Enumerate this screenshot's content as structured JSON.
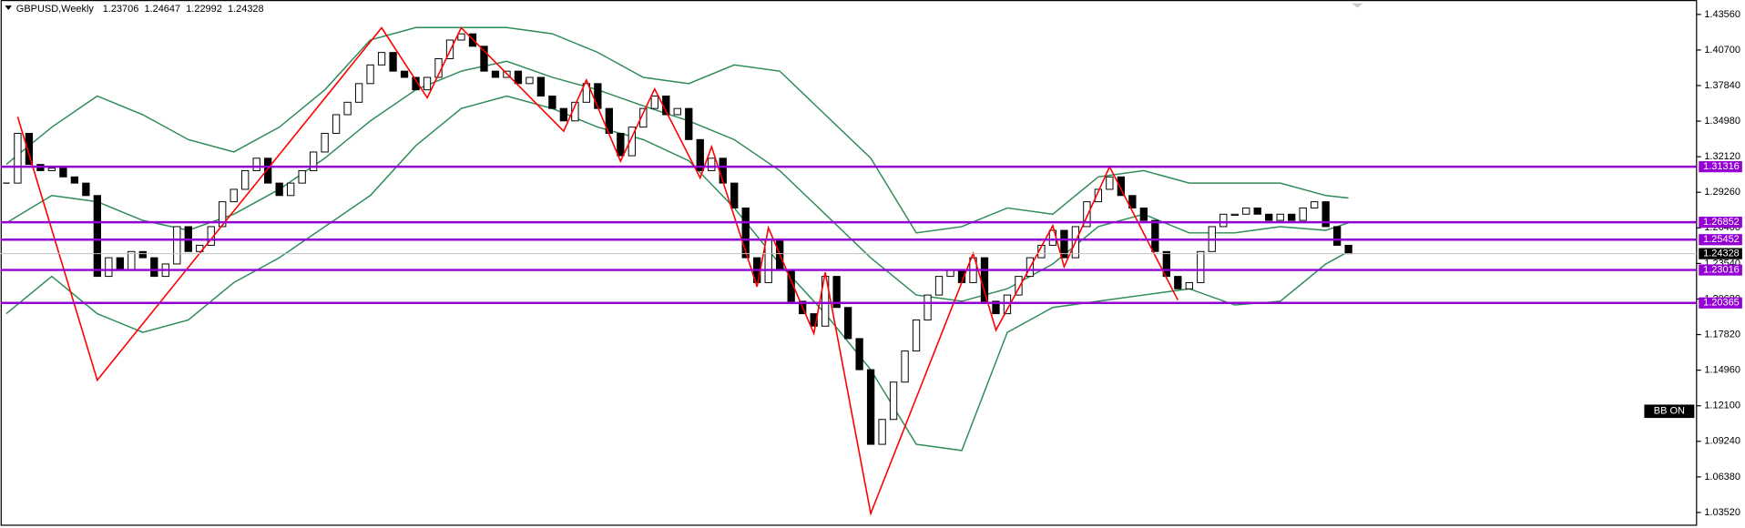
{
  "chart_data": {
    "type": "candlestick",
    "symbol": "GBPUSD,Weekly",
    "last_bar": [
      1.23706,
      1.24647,
      1.22992,
      1.24328
    ],
    "close": [
      1.3,
      1.34,
      1.315,
      1.31,
      1.312,
      1.305,
      1.3,
      1.29,
      1.225,
      1.24,
      1.23,
      1.245,
      1.24,
      1.225,
      1.235,
      1.265,
      1.245,
      1.25,
      1.265,
      1.285,
      1.295,
      1.31,
      1.32,
      1.3,
      1.29,
      1.3,
      1.31,
      1.325,
      1.34,
      1.355,
      1.365,
      1.38,
      1.395,
      1.405,
      1.39,
      1.385,
      1.375,
      1.385,
      1.4,
      1.415,
      1.42,
      1.41,
      1.39,
      1.385,
      1.39,
      1.38,
      1.385,
      1.37,
      1.36,
      1.35,
      1.365,
      1.38,
      1.36,
      1.34,
      1.322,
      1.345,
      1.36,
      1.37,
      1.355,
      1.36,
      1.335,
      1.31,
      1.32,
      1.3,
      1.28,
      1.24,
      1.22,
      1.255,
      1.23,
      1.205,
      1.195,
      1.185,
      1.225,
      1.2,
      1.175,
      1.15,
      1.09,
      1.11,
      1.14,
      1.165,
      1.19,
      1.21,
      1.225,
      1.23,
      1.22,
      1.24,
      1.205,
      1.195,
      1.21,
      1.225,
      1.24,
      1.25,
      1.262,
      1.24,
      1.265,
      1.285,
      1.295,
      1.305,
      1.29,
      1.28,
      1.27,
      1.245,
      1.225,
      1.215,
      1.22,
      1.245,
      1.265,
      1.275,
      1.275,
      1.28,
      1.275,
      1.27,
      1.275,
      1.27,
      1.28,
      1.285,
      1.265,
      1.25,
      1.24328
    ],
    "up_color": "#ffffff",
    "down_color": "#000000",
    "bands": {
      "x": [
        0,
        4,
        8,
        12,
        16,
        20,
        24,
        28,
        32,
        36,
        40,
        44,
        48,
        52,
        56,
        60,
        64,
        68,
        72,
        76,
        80,
        84,
        88,
        92,
        96,
        100,
        104,
        108,
        112,
        116,
        118
      ],
      "upper": [
        1.315,
        1.345,
        1.37,
        1.355,
        1.335,
        1.325,
        1.345,
        1.375,
        1.415,
        1.425,
        1.425,
        1.425,
        1.42,
        1.405,
        1.385,
        1.38,
        1.395,
        1.39,
        1.355,
        1.32,
        1.26,
        1.265,
        1.28,
        1.275,
        1.305,
        1.31,
        1.3,
        1.3,
        1.3,
        1.29,
        1.288
      ],
      "middle": [
        1.268,
        1.29,
        1.285,
        1.27,
        1.262,
        1.275,
        1.295,
        1.32,
        1.35,
        1.375,
        1.39,
        1.398,
        1.385,
        1.375,
        1.362,
        1.35,
        1.335,
        1.31,
        1.275,
        1.24,
        1.21,
        1.205,
        1.215,
        1.235,
        1.265,
        1.275,
        1.26,
        1.26,
        1.265,
        1.262,
        1.268
      ],
      "lower": [
        1.195,
        1.225,
        1.195,
        1.18,
        1.19,
        1.22,
        1.24,
        1.265,
        1.29,
        1.33,
        1.36,
        1.37,
        1.36,
        1.345,
        1.335,
        1.318,
        1.28,
        1.235,
        1.195,
        1.15,
        1.09,
        1.085,
        1.18,
        1.2,
        1.205,
        1.21,
        1.215,
        1.202,
        1.205,
        1.235,
        1.245
      ],
      "color": "#2e8b57"
    },
    "zigzag": {
      "x": [
        1,
        8,
        33,
        37,
        40,
        49,
        51,
        54,
        57,
        61,
        62,
        66,
        67,
        71,
        72,
        76,
        85,
        87,
        92,
        93,
        97,
        103
      ],
      "y": [
        1.35337,
        1.14156,
        1.42487,
        1.36857,
        1.42487,
        1.34176,
        1.38287,
        1.31762,
        1.37572,
        1.30422,
        1.32924,
        1.21663,
        1.264,
        1.1791,
        1.22825,
        1.03431,
        1.24344,
        1.18177,
        1.26579,
        1.23272,
        1.31316,
        1.20591
      ],
      "color": "#ff0000"
    },
    "levels": [
      1.31316,
      1.26852,
      1.25452,
      1.23016,
      1.20365
    ],
    "level_color": "#9400d3",
    "current_price": 1.24328,
    "annotation": "BB ON",
    "xlim": [
      -0.5,
      148.6
    ],
    "ylim": [
      1.0254,
      1.4472
    ],
    "yticks": [
      {
        "value": 1.4356,
        "label": "1.43560"
      },
      {
        "value": 1.407,
        "label": "1.40700"
      },
      {
        "value": 1.3784,
        "label": "1.37840"
      },
      {
        "value": 1.3498,
        "label": "1.34980"
      },
      {
        "value": 1.3212,
        "label": "1.32120"
      },
      {
        "value": 1.2926,
        "label": "1.29260"
      },
      {
        "value": 1.264,
        "label": "1.26400"
      },
      {
        "value": 1.2354,
        "label": "1.23540"
      },
      {
        "value": 1.2068,
        "label": "1.20680"
      },
      {
        "value": 1.1782,
        "label": "1.17820"
      },
      {
        "value": 1.1496,
        "label": "1.14960"
      },
      {
        "value": 1.121,
        "label": "1.12100"
      },
      {
        "value": 1.0924,
        "label": "1.09240"
      },
      {
        "value": 1.0638,
        "label": "1.06380"
      },
      {
        "value": 1.0352,
        "label": "1.03520"
      }
    ]
  }
}
